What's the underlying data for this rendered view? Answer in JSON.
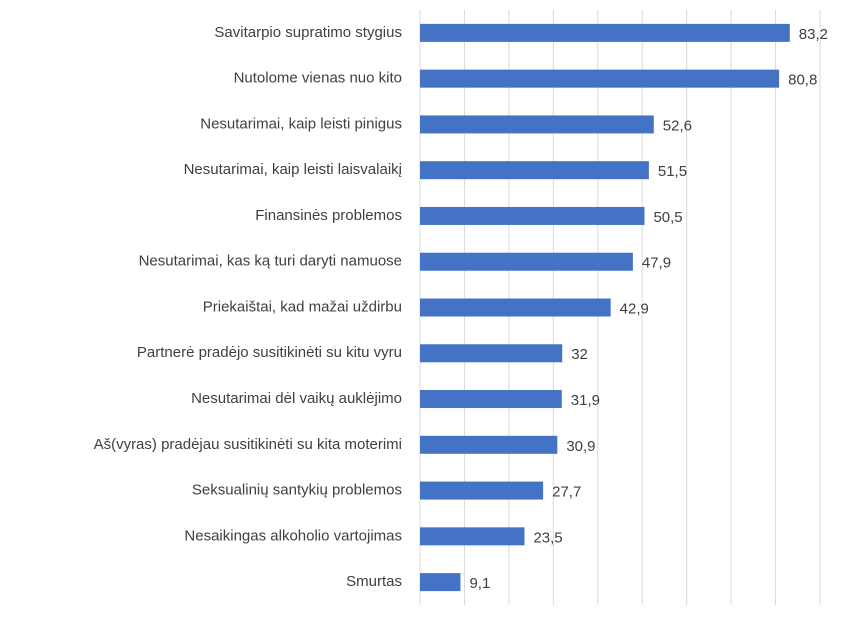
{
  "chart_data": {
    "type": "barh",
    "categories": [
      "Savitarpio supratimo stygius",
      "Nutolome vienas nuo kito",
      "Nesutarimai, kaip leisti pinigus",
      "Nesutarimai, kaip leisti laisvalaikį",
      "Finansinės problemos",
      "Nesutarimai, kas ką turi daryti namuose",
      "Priekaištai, kad mažai uždirbu",
      "Partnerė pradėjo susitikinėti su kitu vyru",
      "Nesutarimai dėl vaikų auklėjimo",
      "Aš(vyras) pradėjau susitikinėti su kita moterimi",
      "Seksualinių santykių problemos",
      "Nesaikingas alkoholio vartojimas",
      "Smurtas"
    ],
    "values": [
      83.2,
      80.8,
      52.6,
      51.5,
      50.5,
      47.9,
      42.9,
      32,
      31.9,
      30.9,
      27.7,
      23.5,
      9.1
    ],
    "value_labels": [
      "83,2",
      "80,8",
      "52,6",
      "51,5",
      "50,5",
      "47,9",
      "42,9",
      "32",
      "31,9",
      "30,9",
      "27,7",
      "23,5",
      "9,1"
    ],
    "color": "#4472c4",
    "xlim": [
      0,
      90
    ],
    "xticks": [
      0,
      10,
      20,
      30,
      40,
      50,
      60,
      70,
      80,
      90
    ],
    "grid": true
  }
}
